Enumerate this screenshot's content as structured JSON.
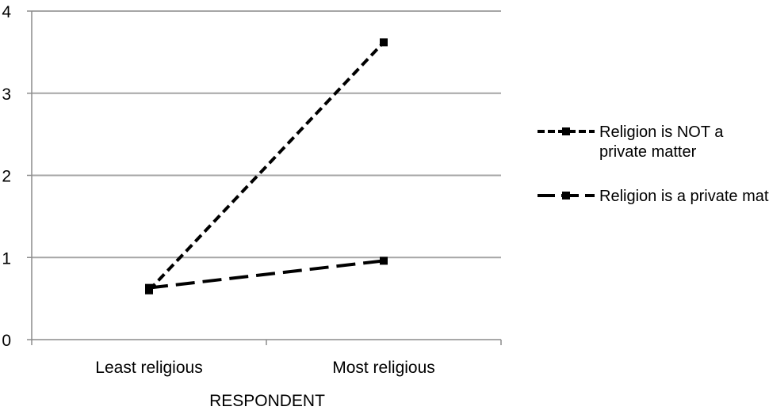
{
  "chart_data": {
    "type": "line",
    "title": "",
    "xlabel": "RESPONDENT",
    "ylabel": "",
    "categories": [
      "Least religious",
      "Most religious"
    ],
    "ylim": [
      0,
      4
    ],
    "yticks": [
      0,
      1,
      2,
      3,
      4
    ],
    "grid": true,
    "legend_position": "right",
    "series": [
      {
        "name": "Religion is NOT a private matter",
        "values": [
          0.6,
          3.62
        ],
        "dash": "short-dash",
        "marker": "square",
        "color": "#000000"
      },
      {
        "name": "Religion is a private matter",
        "values": [
          0.63,
          0.96
        ],
        "dash": "long-dash",
        "marker": "square",
        "color": "#000000"
      }
    ],
    "gridline_color": "#a6a6a6",
    "axis_color": "#8c8c8c"
  }
}
